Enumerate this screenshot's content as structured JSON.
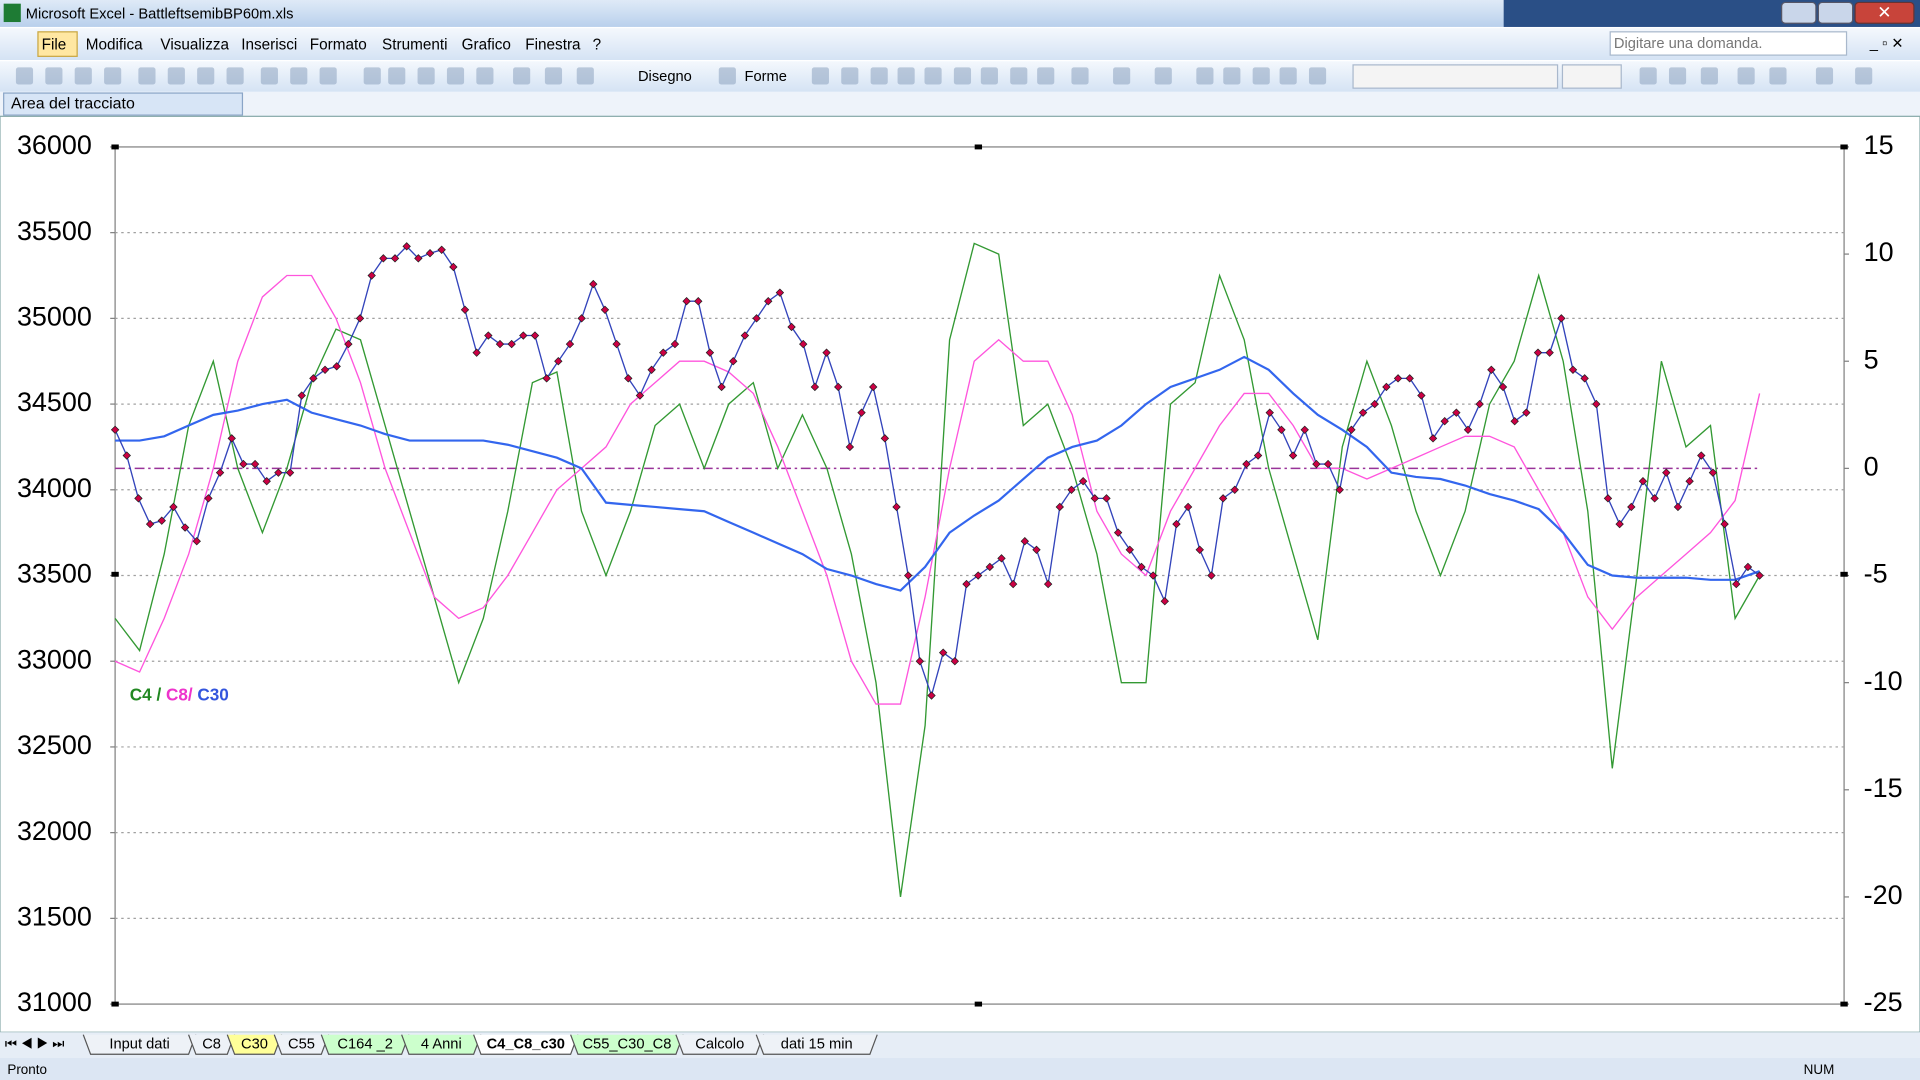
{
  "window": {
    "title": "Microsoft Excel - BattleftsemibBP60m.xls"
  },
  "menu": [
    "File",
    "Modifica",
    "Visualizza",
    "Inserisci",
    "Formato",
    "Strumenti",
    "Grafico",
    "Finestra",
    "?"
  ],
  "help_box": "Digitare una domanda.",
  "toolbar": {
    "drawing": "Disegno",
    "shapes": "Forme"
  },
  "name_box": "Area del tracciato",
  "chart_data": {
    "type": "line",
    "ylim": [
      31000,
      36000
    ],
    "yticks": [
      31000,
      31500,
      32000,
      32500,
      33000,
      33500,
      34000,
      34500,
      35000,
      35500,
      36000
    ],
    "y2lim": [
      -25,
      15
    ],
    "y2ticks": [
      -25,
      -20,
      -15,
      -10,
      -5,
      0,
      5,
      10,
      15
    ],
    "grid": true,
    "reference_line": {
      "axis": "y2",
      "value": 0,
      "color": "#993399"
    },
    "annotation": [
      {
        "text": "C4",
        "color": "#228822"
      },
      {
        "text": " / ",
        "color": "#228822"
      },
      {
        "text": "C8/",
        "color": "#ee33cc"
      },
      {
        "text": " C30",
        "color": "#3355dd"
      }
    ],
    "series": [
      {
        "color": "#3344bb",
        "marker_color": "#cc0044",
        "axis": "y",
        "values": [
          34350,
          34200,
          33950,
          33800,
          33820,
          33900,
          33780,
          33700,
          33950,
          34100,
          34300,
          34150,
          34150,
          34050,
          34100,
          34100,
          34550,
          34650,
          34700,
          34720,
          34850,
          35000,
          35250,
          35350,
          35350,
          35420,
          35350,
          35380,
          35400,
          35300,
          35050,
          34800,
          34900,
          34850,
          34850,
          34900,
          34900,
          34650,
          34750,
          34850,
          35000,
          35200,
          35050,
          34850,
          34650,
          34550,
          34700,
          34800,
          34850,
          35100,
          35100,
          34800,
          34600,
          34750,
          34900,
          35000,
          35100,
          35150,
          34950,
          34850,
          34600,
          34800,
          34600,
          34250,
          34450,
          34600,
          34300,
          33900,
          33500,
          33000,
          32800,
          33050,
          33000,
          33450,
          33500,
          33550,
          33600,
          33450,
          33700,
          33650,
          33450,
          33900,
          34000,
          34050,
          33950,
          33950,
          33750,
          33650,
          33550,
          33500,
          33350,
          33800,
          33900,
          33650,
          33500,
          33950,
          34000,
          34150,
          34200,
          34450,
          34350,
          34200,
          34350,
          34150,
          34150,
          34000,
          34350,
          34450,
          34500,
          34600,
          34650,
          34650,
          34550,
          34300,
          34400,
          34450,
          34350,
          34500,
          34700,
          34600,
          34400,
          34450,
          34800,
          34800,
          35000,
          34700,
          34650,
          34500,
          33950,
          33800,
          33900,
          34050,
          33950,
          34100,
          33900,
          34050,
          34200,
          34100,
          33800,
          33450,
          33550,
          33500
        ]
      },
      {
        "color": "#339933",
        "axis": "y2",
        "values": [
          -7,
          -8.5,
          -4,
          2,
          5,
          0,
          -3,
          0,
          4,
          6.5,
          6,
          2,
          -2,
          -6,
          -10,
          -7,
          -2,
          4,
          4.5,
          -2,
          -5,
          -2,
          2,
          3,
          0,
          3,
          4,
          0,
          2.5,
          0,
          -4,
          -10,
          -20,
          -12,
          6,
          10.5,
          10,
          2,
          3,
          0,
          -4,
          -10,
          -10,
          3,
          4,
          9,
          6,
          0,
          -4,
          -8,
          1,
          5,
          2,
          -2,
          -5,
          -2,
          3,
          5,
          9,
          5,
          -2,
          -14,
          -5,
          5,
          1,
          2,
          -7,
          -5
        ]
      },
      {
        "color": "#ff55dd",
        "axis": "y2",
        "values": [
          -9,
          -9.5,
          -7,
          -4,
          0,
          5,
          8,
          9,
          9,
          7,
          4,
          0,
          -3,
          -6,
          -7,
          -6.5,
          -5,
          -3,
          -1,
          0,
          1,
          3,
          4,
          5,
          5,
          4.5,
          3.5,
          1,
          -2,
          -5,
          -9,
          -11,
          -11,
          -6,
          0,
          5,
          6,
          5,
          5,
          2.5,
          -2,
          -4,
          -5,
          -2,
          0,
          2,
          3.5,
          3.5,
          2,
          0,
          0,
          -0.5,
          0,
          0.5,
          1,
          1.5,
          1.5,
          1,
          -1,
          -3,
          -6,
          -7.5,
          -6,
          -5,
          -4,
          -3,
          -1.5,
          3.5
        ]
      },
      {
        "color": "#3366ee",
        "axis": "y2",
        "values": [
          1.3,
          1.3,
          1.5,
          2,
          2.5,
          2.7,
          3,
          3.2,
          2.6,
          2.3,
          2,
          1.6,
          1.3,
          1.3,
          1.3,
          1.3,
          1.1,
          0.8,
          0.5,
          0,
          -1.6,
          -1.7,
          -1.8,
          -1.9,
          -2,
          -2.5,
          -3,
          -3.5,
          -4,
          -4.7,
          -5,
          -5.4,
          -5.7,
          -4.6,
          -3,
          -2.2,
          -1.5,
          -0.5,
          0.5,
          1,
          1.3,
          2,
          3,
          3.8,
          4.2,
          4.6,
          5.2,
          4.6,
          3.5,
          2.5,
          1.8,
          1,
          -0.2,
          -0.4,
          -0.5,
          -0.8,
          -1.2,
          -1.5,
          -1.9,
          -3,
          -4.5,
          -5,
          -5.1,
          -5.1,
          -5.1,
          -5.2,
          -5.2,
          -4.8
        ]
      }
    ]
  },
  "sheet_tabs": [
    {
      "label": "Input dati"
    },
    {
      "label": "C8"
    },
    {
      "label": "C30",
      "color": "#ffff99"
    },
    {
      "label": "C55"
    },
    {
      "label": "C164 _2",
      "color": "#ccffcc"
    },
    {
      "label": "4 Anni",
      "color": "#ccffcc"
    },
    {
      "label": "C4_C8_c30",
      "active": true
    },
    {
      "label": "C55_C30_C8",
      "color": "#ccffcc"
    },
    {
      "label": "Calcolo"
    },
    {
      "label": "dati 15 min"
    }
  ],
  "status": {
    "left": "Pronto",
    "right": "NUM"
  }
}
